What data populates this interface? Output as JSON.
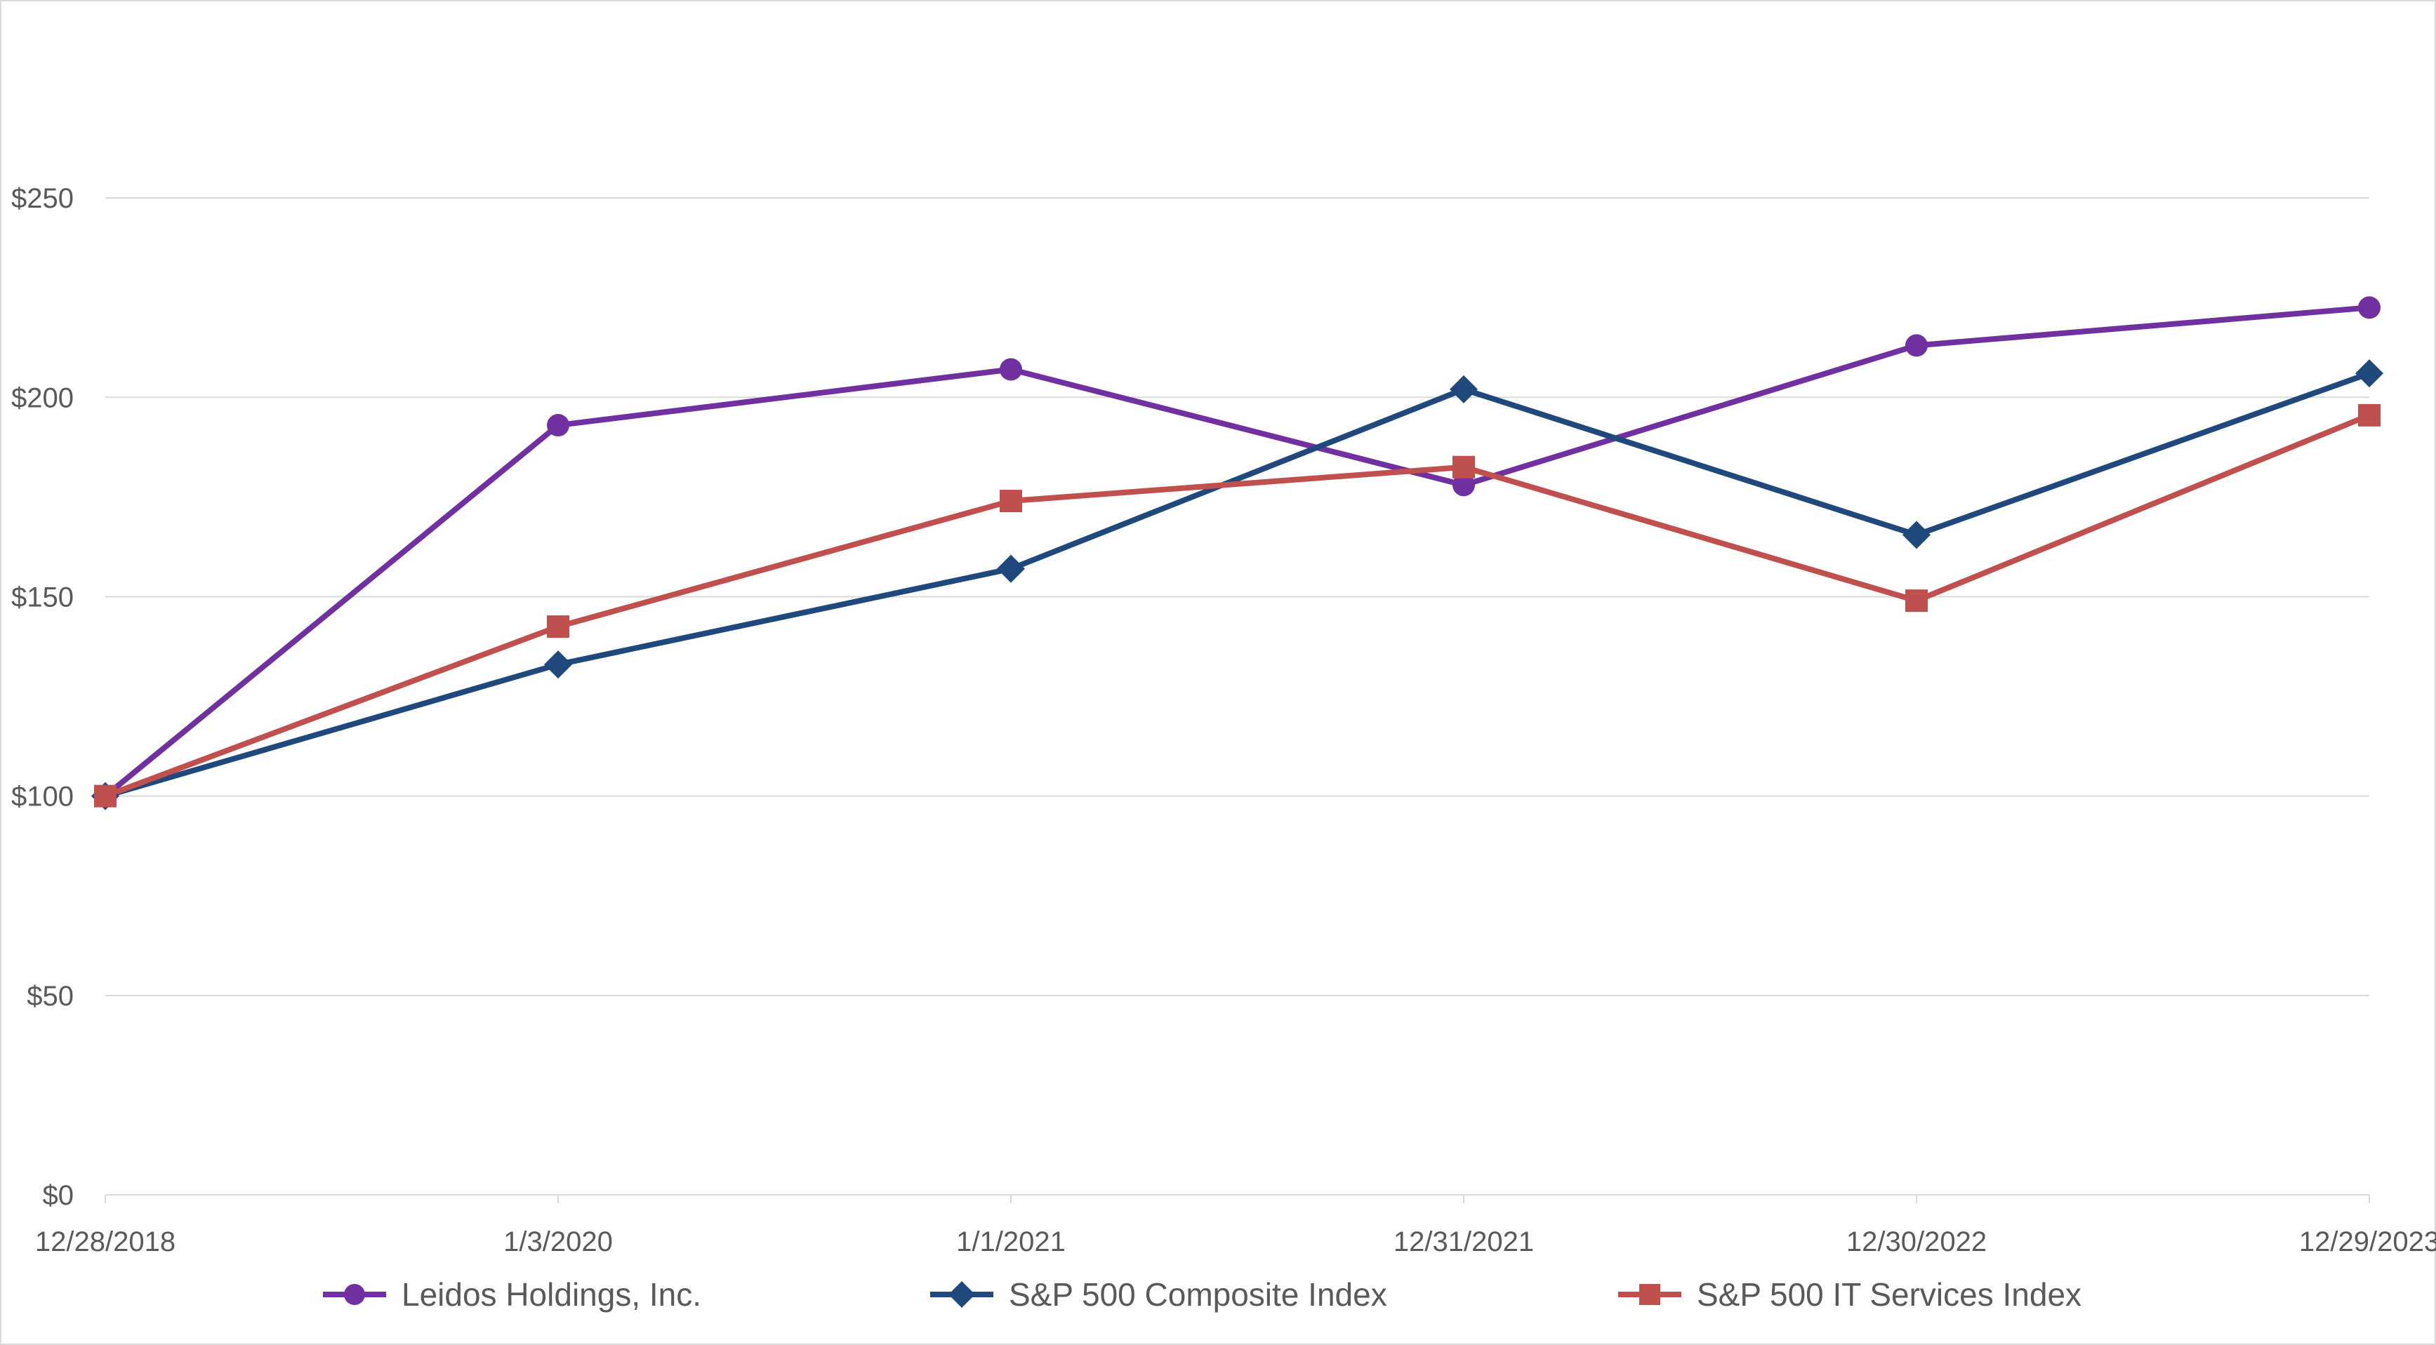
{
  "chart_data": {
    "type": "line",
    "x": [
      "12/28/2018",
      "1/3/2020",
      "1/1/2021",
      "12/31/2021",
      "12/30/2022",
      "12/29/2023"
    ],
    "y_ticks": [
      "$0",
      "$50",
      "$100",
      "$150",
      "$200",
      "$250"
    ],
    "ylim": [
      0,
      275
    ],
    "grid": true,
    "legend_position": "bottom",
    "series": [
      {
        "name": "Leidos Holdings, Inc.",
        "color": "#7030a0",
        "marker": "circle",
        "values": [
          100,
          193,
          207,
          178,
          213,
          222.5
        ]
      },
      {
        "name": "S&P 500 Composite Index",
        "color": "#1f497d",
        "marker": "diamond",
        "values": [
          100,
          133,
          157,
          202,
          165.5,
          206
        ]
      },
      {
        "name": "S&P 500 IT Services Index",
        "color": "#c0504d",
        "marker": "square",
        "values": [
          100,
          142.5,
          174,
          182.5,
          149,
          195.5
        ]
      }
    ]
  }
}
